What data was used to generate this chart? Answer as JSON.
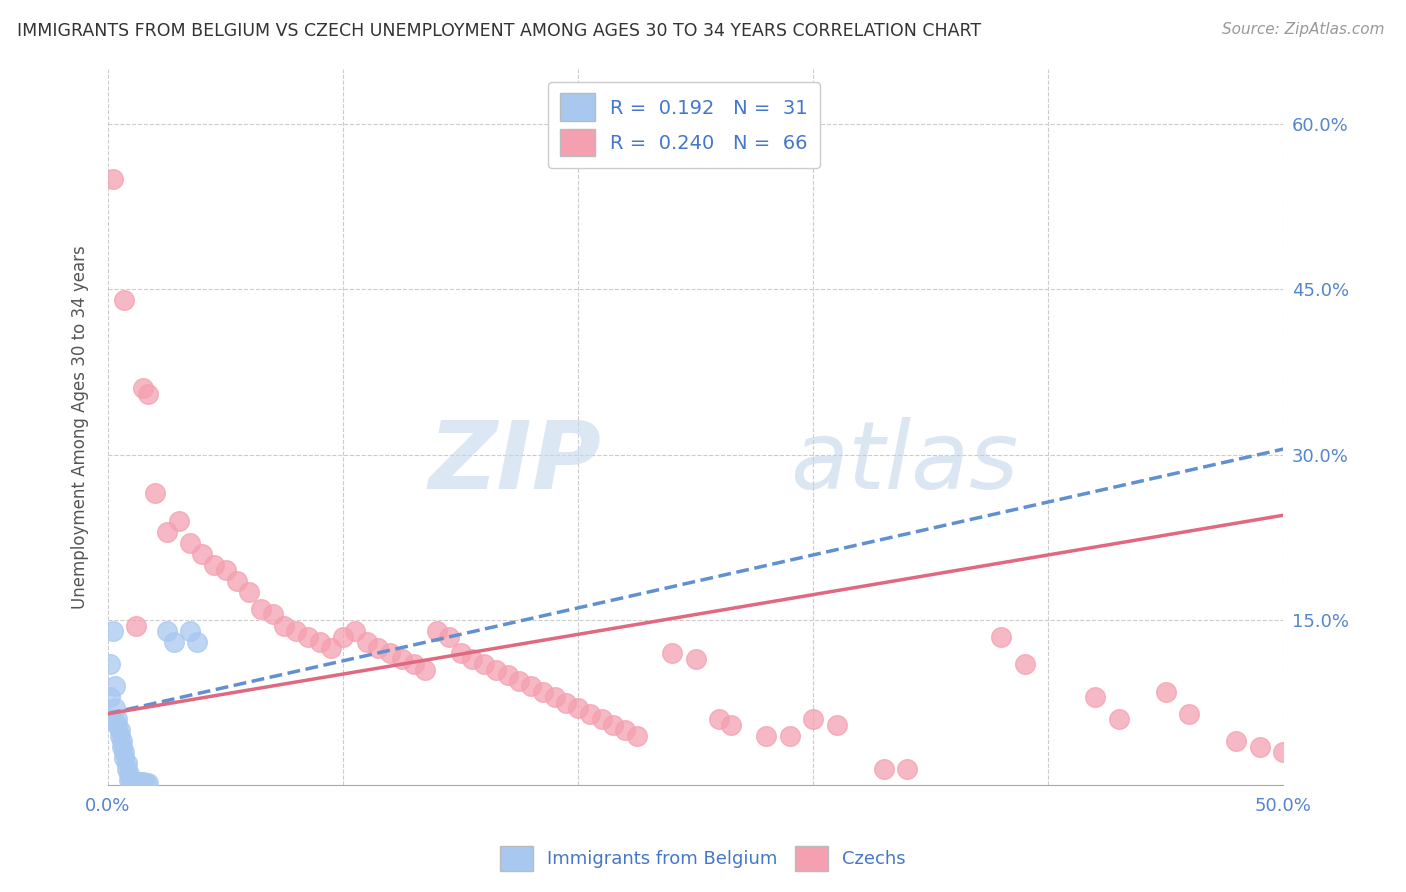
{
  "title": "IMMIGRANTS FROM BELGIUM VS CZECH UNEMPLOYMENT AMONG AGES 30 TO 34 YEARS CORRELATION CHART",
  "source": "Source: ZipAtlas.com",
  "ylabel": "Unemployment Among Ages 30 to 34 years",
  "xlim": [
    0.0,
    0.5
  ],
  "ylim": [
    0.0,
    0.65
  ],
  "xticks": [
    0.0,
    0.1,
    0.2,
    0.3,
    0.4,
    0.5
  ],
  "xticklabels": [
    "0.0%",
    "",
    "",
    "",
    "",
    "50.0%"
  ],
  "yticks_right": [
    0.0,
    0.15,
    0.3,
    0.45,
    0.6
  ],
  "yticklabels_right": [
    "",
    "15.0%",
    "30.0%",
    "45.0%",
    "60.0%"
  ],
  "watermark_zip": "ZIP",
  "watermark_atlas": "atlas",
  "belgium_color": "#a8c8f0",
  "czech_color": "#f4a0b0",
  "belgium_line_color": "#6090d0",
  "czech_line_color": "#e06880",
  "belgium_r": 0.192,
  "belgium_n": 31,
  "czech_r": 0.24,
  "czech_n": 66,
  "bel_line_x": [
    0.0,
    0.5
  ],
  "bel_line_y": [
    0.065,
    0.305
  ],
  "czk_line_x": [
    0.0,
    0.5
  ],
  "czk_line_y": [
    0.065,
    0.245
  ],
  "belgium_scatter": [
    [
      0.002,
      0.14
    ],
    [
      0.003,
      0.09
    ],
    [
      0.003,
      0.07
    ],
    [
      0.004,
      0.06
    ],
    [
      0.004,
      0.055
    ],
    [
      0.005,
      0.05
    ],
    [
      0.005,
      0.045
    ],
    [
      0.006,
      0.04
    ],
    [
      0.006,
      0.035
    ],
    [
      0.007,
      0.03
    ],
    [
      0.007,
      0.025
    ],
    [
      0.008,
      0.02
    ],
    [
      0.008,
      0.015
    ],
    [
      0.009,
      0.01
    ],
    [
      0.009,
      0.005
    ],
    [
      0.01,
      0.005
    ],
    [
      0.01,
      0.004
    ],
    [
      0.011,
      0.003
    ],
    [
      0.012,
      0.003
    ],
    [
      0.013,
      0.003
    ],
    [
      0.014,
      0.003
    ],
    [
      0.015,
      0.003
    ],
    [
      0.016,
      0.002
    ],
    [
      0.017,
      0.002
    ],
    [
      0.025,
      0.14
    ],
    [
      0.028,
      0.13
    ],
    [
      0.035,
      0.14
    ],
    [
      0.038,
      0.13
    ],
    [
      0.001,
      0.11
    ],
    [
      0.001,
      0.08
    ],
    [
      0.001,
      0.06
    ]
  ],
  "czech_scatter": [
    [
      0.002,
      0.55
    ],
    [
      0.007,
      0.44
    ],
    [
      0.015,
      0.36
    ],
    [
      0.017,
      0.355
    ],
    [
      0.02,
      0.265
    ],
    [
      0.025,
      0.23
    ],
    [
      0.03,
      0.24
    ],
    [
      0.035,
      0.22
    ],
    [
      0.04,
      0.21
    ],
    [
      0.045,
      0.2
    ],
    [
      0.05,
      0.195
    ],
    [
      0.055,
      0.185
    ],
    [
      0.06,
      0.175
    ],
    [
      0.065,
      0.16
    ],
    [
      0.07,
      0.155
    ],
    [
      0.075,
      0.145
    ],
    [
      0.08,
      0.14
    ],
    [
      0.085,
      0.135
    ],
    [
      0.09,
      0.13
    ],
    [
      0.095,
      0.125
    ],
    [
      0.1,
      0.135
    ],
    [
      0.105,
      0.14
    ],
    [
      0.11,
      0.13
    ],
    [
      0.115,
      0.125
    ],
    [
      0.12,
      0.12
    ],
    [
      0.125,
      0.115
    ],
    [
      0.13,
      0.11
    ],
    [
      0.135,
      0.105
    ],
    [
      0.14,
      0.14
    ],
    [
      0.145,
      0.135
    ],
    [
      0.15,
      0.12
    ],
    [
      0.155,
      0.115
    ],
    [
      0.16,
      0.11
    ],
    [
      0.165,
      0.105
    ],
    [
      0.17,
      0.1
    ],
    [
      0.175,
      0.095
    ],
    [
      0.18,
      0.09
    ],
    [
      0.185,
      0.085
    ],
    [
      0.19,
      0.08
    ],
    [
      0.195,
      0.075
    ],
    [
      0.2,
      0.07
    ],
    [
      0.205,
      0.065
    ],
    [
      0.21,
      0.06
    ],
    [
      0.215,
      0.055
    ],
    [
      0.22,
      0.05
    ],
    [
      0.225,
      0.045
    ],
    [
      0.24,
      0.12
    ],
    [
      0.25,
      0.115
    ],
    [
      0.26,
      0.06
    ],
    [
      0.265,
      0.055
    ],
    [
      0.28,
      0.045
    ],
    [
      0.29,
      0.045
    ],
    [
      0.3,
      0.06
    ],
    [
      0.31,
      0.055
    ],
    [
      0.33,
      0.015
    ],
    [
      0.34,
      0.015
    ],
    [
      0.38,
      0.135
    ],
    [
      0.39,
      0.11
    ],
    [
      0.42,
      0.08
    ],
    [
      0.43,
      0.06
    ],
    [
      0.45,
      0.085
    ],
    [
      0.46,
      0.065
    ],
    [
      0.48,
      0.04
    ],
    [
      0.49,
      0.035
    ],
    [
      0.5,
      0.03
    ],
    [
      0.012,
      0.145
    ]
  ]
}
